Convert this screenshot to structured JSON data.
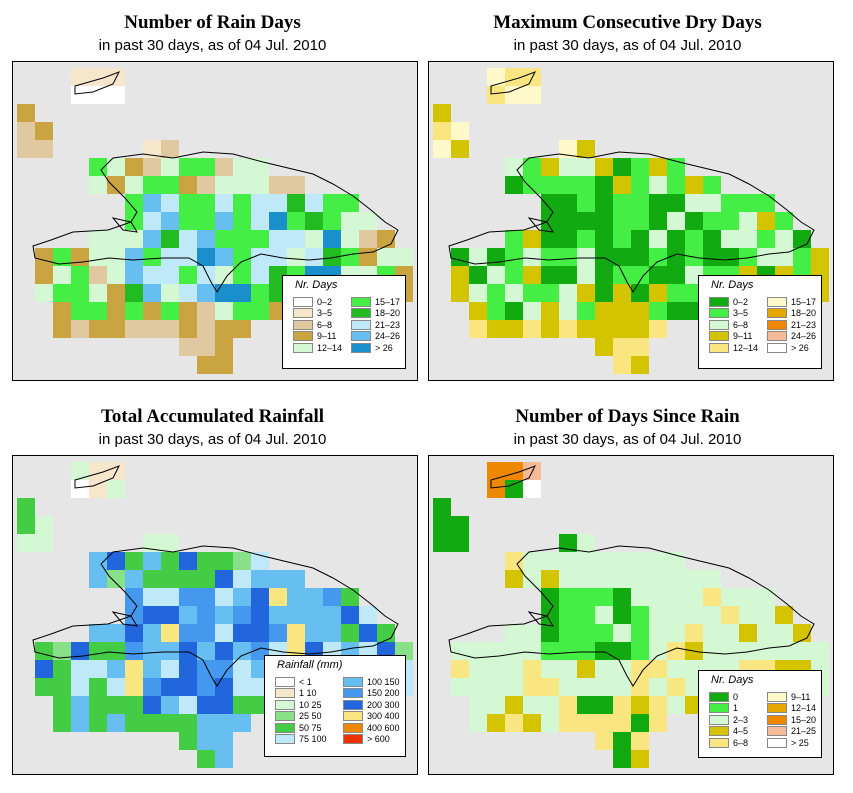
{
  "panels": [
    {
      "id": "rain-days",
      "title": "Number of Rain Days",
      "subtitle": "in past 30 days, as of  04 Jul. 2010",
      "legend": {
        "title": "Nr. Days",
        "items": [
          {
            "label": "0–2",
            "color": "#ffffff"
          },
          {
            "label": "3–5",
            "color": "#f5e6cc"
          },
          {
            "label": "6–8",
            "color": "#e0c8a0"
          },
          {
            "label": "9–11",
            "color": "#c9a440"
          },
          {
            "label": "12–14",
            "color": "#d4f7d4"
          },
          {
            "label": "15–17",
            "color": "#44ee44"
          },
          {
            "label": "18–20",
            "color": "#22bb22"
          },
          {
            "label": "21–23",
            "color": "#bfe9f9"
          },
          {
            "label": "24–26",
            "color": "#66bff0"
          },
          {
            "label": "> 26",
            "color": "#1a8fcc"
          }
        ]
      }
    },
    {
      "id": "dry-days",
      "title": "Maximum Consecutive Dry Days",
      "subtitle": "in past 30 days, as of  04 Jul. 2010",
      "legend": {
        "title": "Nr. Days",
        "items": [
          {
            "label": "0–2",
            "color": "#11aa11"
          },
          {
            "label": "3–5",
            "color": "#44ee44"
          },
          {
            "label": "6–8",
            "color": "#d4f7d4"
          },
          {
            "label": "9–11",
            "color": "#d4c400"
          },
          {
            "label": "12–14",
            "color": "#fae680"
          },
          {
            "label": "15–17",
            "color": "#fff8c8"
          },
          {
            "label": "18–20",
            "color": "#e6a800"
          },
          {
            "label": "21–23",
            "color": "#ee8800"
          },
          {
            "label": "24–26",
            "color": "#f5bb99"
          },
          {
            "label": "> 26",
            "color": "#ffffff"
          }
        ]
      }
    },
    {
      "id": "rainfall",
      "title": "Total Accumulated Rainfall",
      "subtitle": "in past 30 days, as of  04 Jul. 2010",
      "legend": {
        "title": "Rainfall (mm)",
        "items": [
          {
            "label": "< 1",
            "color": "#ffffff"
          },
          {
            "label": "1    10",
            "color": "#f5e6cc"
          },
          {
            "label": "10    25",
            "color": "#d4f7d4"
          },
          {
            "label": "25    50",
            "color": "#88e088"
          },
          {
            "label": "50    75",
            "color": "#44cc44"
          },
          {
            "label": "75    100",
            "color": "#bfe9f9"
          },
          {
            "label": "100    150",
            "color": "#66bff0"
          },
          {
            "label": "150    200",
            "color": "#4499ee"
          },
          {
            "label": "200    300",
            "color": "#2266dd"
          },
          {
            "label": "300    400",
            "color": "#fae680"
          },
          {
            "label": "400    600",
            "color": "#ee8800"
          },
          {
            "label": "> 600",
            "color": "#ee3300"
          }
        ]
      }
    },
    {
      "id": "since-rain",
      "title": "Number of Days Since Rain",
      "subtitle": "in past 30 days, as of  04 Jul. 2010",
      "legend": {
        "title": "Nr. Days",
        "items": [
          {
            "label": "0",
            "color": "#11aa11"
          },
          {
            "label": "1",
            "color": "#44ee44"
          },
          {
            "label": "2–3",
            "color": "#d4f7d4"
          },
          {
            "label": "4–5",
            "color": "#d4c400"
          },
          {
            "label": "6–8",
            "color": "#fae680"
          },
          {
            "label": "9–11",
            "color": "#fff8c8"
          },
          {
            "label": "12–14",
            "color": "#e6a800"
          },
          {
            "label": "15–20",
            "color": "#ee8800"
          },
          {
            "label": "21–25",
            "color": "#f5bb99"
          },
          {
            "label": "> 25",
            "color": "#ffffff"
          }
        ]
      }
    }
  ],
  "background_color": "#e6e6e6",
  "outline_color": "#000000"
}
